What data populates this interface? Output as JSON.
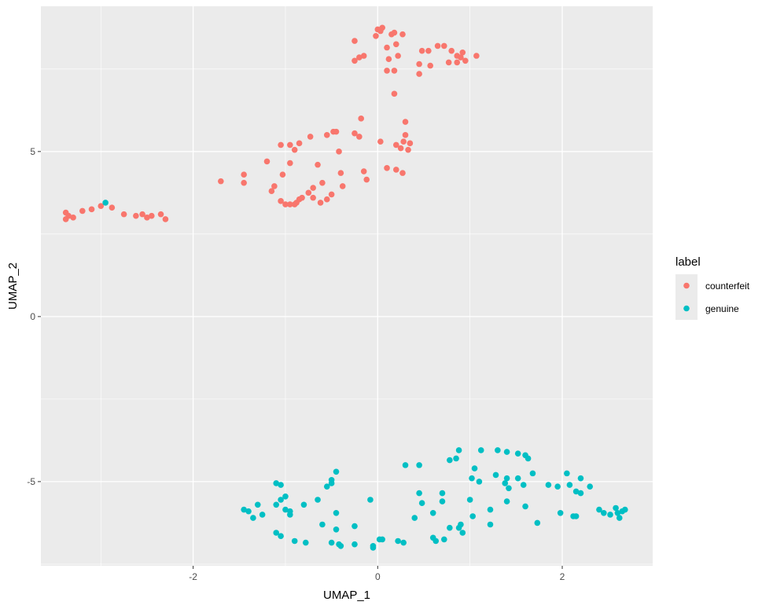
{
  "chart_data": {
    "type": "scatter",
    "title": "",
    "xlabel": "UMAP_1",
    "ylabel": "UMAP_2",
    "xlim": [
      -3.65,
      2.98
    ],
    "ylim": [
      -7.55,
      9.4
    ],
    "x_ticks": [
      -2,
      0,
      2
    ],
    "x_tick_labels": [
      "-2",
      "0",
      "2"
    ],
    "y_ticks": [
      -5,
      0,
      5
    ],
    "y_tick_labels": [
      "-5",
      "0",
      "5"
    ],
    "grid": true,
    "background_color": "#ebebeb",
    "grid_color": "#ffffff",
    "legend": {
      "title": "label",
      "position": "right",
      "entries": [
        {
          "name": "counterfeit",
          "color": "#f8766d"
        },
        {
          "name": "genuine",
          "color": "#00bfc4"
        }
      ]
    },
    "series": [
      {
        "name": "counterfeit",
        "color": "#f8766d",
        "points": [
          [
            -0.25,
            8.35
          ],
          [
            -0.25,
            7.75
          ],
          [
            -0.2,
            7.85
          ],
          [
            -0.15,
            7.9
          ],
          [
            -0.02,
            8.5
          ],
          [
            0,
            8.7
          ],
          [
            0.03,
            8.65
          ],
          [
            0.05,
            8.75
          ],
          [
            0.1,
            8.15
          ],
          [
            0.12,
            7.8
          ],
          [
            0.15,
            8.55
          ],
          [
            0.18,
            8.6
          ],
          [
            0.2,
            8.25
          ],
          [
            0.22,
            7.9
          ],
          [
            0.27,
            8.55
          ],
          [
            0.1,
            7.45
          ],
          [
            0.18,
            7.45
          ],
          [
            0.45,
            7.65
          ],
          [
            0.45,
            7.35
          ],
          [
            0.48,
            8.05
          ],
          [
            0.55,
            8.05
          ],
          [
            0.57,
            7.6
          ],
          [
            0.65,
            8.2
          ],
          [
            0.72,
            8.2
          ],
          [
            0.77,
            7.7
          ],
          [
            0.8,
            8.05
          ],
          [
            0.86,
            7.7
          ],
          [
            0.86,
            7.9
          ],
          [
            0.9,
            7.85
          ],
          [
            0.92,
            8
          ],
          [
            0.95,
            7.75
          ],
          [
            1.07,
            7.9
          ],
          [
            0.18,
            6.75
          ],
          [
            -0.18,
            6
          ],
          [
            0.3,
            5.9
          ],
          [
            -0.25,
            5.55
          ],
          [
            -0.2,
            5.45
          ],
          [
            -0.48,
            5.6
          ],
          [
            -0.45,
            5.6
          ],
          [
            -0.55,
            5.5
          ],
          [
            -0.73,
            5.45
          ],
          [
            -0.85,
            5.25
          ],
          [
            -0.95,
            5.2
          ],
          [
            -1.05,
            5.2
          ],
          [
            0.03,
            5.3
          ],
          [
            0.2,
            5.2
          ],
          [
            0.25,
            5.1
          ],
          [
            0.3,
            5.5
          ],
          [
            0.28,
            5.3
          ],
          [
            0.33,
            5.05
          ],
          [
            0.35,
            5.25
          ],
          [
            -0.9,
            5.05
          ],
          [
            -1.2,
            4.7
          ],
          [
            -0.65,
            4.6
          ],
          [
            -0.42,
            5
          ],
          [
            -0.95,
            4.65
          ],
          [
            -0.4,
            4.35
          ],
          [
            0.1,
            4.5
          ],
          [
            -0.15,
            4.4
          ],
          [
            0.2,
            4.45
          ],
          [
            0.27,
            4.35
          ],
          [
            -0.12,
            4.15
          ],
          [
            -1.45,
            4.3
          ],
          [
            -1.03,
            4.3
          ],
          [
            -1.7,
            4.1
          ],
          [
            -1.45,
            4.05
          ],
          [
            -0.6,
            4.05
          ],
          [
            -0.38,
            3.95
          ],
          [
            -0.5,
            3.7
          ],
          [
            -1.12,
            3.95
          ],
          [
            -1.15,
            3.8
          ],
          [
            -0.7,
            3.9
          ],
          [
            -0.75,
            3.75
          ],
          [
            -0.95,
            3.4
          ],
          [
            -0.85,
            3.55
          ],
          [
            -0.82,
            3.6
          ],
          [
            -1.05,
            3.5
          ],
          [
            -0.7,
            3.6
          ],
          [
            -0.55,
            3.55
          ],
          [
            -1.0,
            3.4
          ],
          [
            -0.9,
            3.4
          ],
          [
            -0.88,
            3.45
          ],
          [
            -0.62,
            3.45
          ],
          [
            -3.38,
            3.15
          ],
          [
            -3.35,
            3.05
          ],
          [
            -3.3,
            3.0
          ],
          [
            -3.38,
            2.95
          ],
          [
            -3.2,
            3.2
          ],
          [
            -3.1,
            3.25
          ],
          [
            -3.0,
            3.35
          ],
          [
            -2.88,
            3.3
          ],
          [
            -2.75,
            3.1
          ],
          [
            -2.62,
            3.05
          ],
          [
            -2.55,
            3.1
          ],
          [
            -2.5,
            3.0
          ],
          [
            -2.45,
            3.05
          ],
          [
            -2.35,
            3.1
          ],
          [
            -2.3,
            2.95
          ]
        ]
      },
      {
        "name": "genuine",
        "color": "#00bfc4",
        "points": [
          [
            -2.95,
            3.45
          ],
          [
            -1.1,
            -5.05
          ],
          [
            -1.05,
            -5.1
          ],
          [
            -1.0,
            -5.45
          ],
          [
            -1.05,
            -5.55
          ],
          [
            -1.1,
            -5.7
          ],
          [
            -1.3,
            -5.7
          ],
          [
            -1.45,
            -5.85
          ],
          [
            -1.4,
            -5.9
          ],
          [
            -1.25,
            -6.0
          ],
          [
            -1.35,
            -6.1
          ],
          [
            -0.95,
            -5.9
          ],
          [
            -0.95,
            -6.0
          ],
          [
            -1.0,
            -5.85
          ],
          [
            -1.1,
            -6.55
          ],
          [
            -1.05,
            -6.65
          ],
          [
            -0.9,
            -6.8
          ],
          [
            -0.78,
            -6.85
          ],
          [
            -0.8,
            -5.7
          ],
          [
            -0.65,
            -5.55
          ],
          [
            -0.55,
            -5.15
          ],
          [
            -0.5,
            -4.95
          ],
          [
            -0.45,
            -4.7
          ],
          [
            -0.5,
            -5.05
          ],
          [
            -0.45,
            -5.95
          ],
          [
            -0.6,
            -6.3
          ],
          [
            -0.45,
            -6.45
          ],
          [
            -0.5,
            -6.85
          ],
          [
            -0.42,
            -6.9
          ],
          [
            -0.4,
            -6.95
          ],
          [
            -0.25,
            -6.9
          ],
          [
            -0.25,
            -6.35
          ],
          [
            -0.08,
            -5.55
          ],
          [
            -0.05,
            -6.95
          ],
          [
            -0.05,
            -7.0
          ],
          [
            0.02,
            -6.75
          ],
          [
            0.05,
            -6.75
          ],
          [
            0.22,
            -6.8
          ],
          [
            0.28,
            -6.85
          ],
          [
            0.3,
            -4.5
          ],
          [
            0.4,
            -6.1
          ],
          [
            0.45,
            -5.35
          ],
          [
            0.48,
            -5.65
          ],
          [
            0.45,
            -4.5
          ],
          [
            0.6,
            -5.95
          ],
          [
            0.6,
            -6.7
          ],
          [
            0.63,
            -6.8
          ],
          [
            0.7,
            -5.6
          ],
          [
            0.7,
            -5.35
          ],
          [
            0.72,
            -6.75
          ],
          [
            0.78,
            -6.4
          ],
          [
            0.78,
            -4.35
          ],
          [
            0.85,
            -4.3
          ],
          [
            0.88,
            -4.05
          ],
          [
            0.88,
            -6.4
          ],
          [
            0.9,
            -6.3
          ],
          [
            0.92,
            -6.55
          ],
          [
            1.0,
            -5.55
          ],
          [
            1.02,
            -4.9
          ],
          [
            1.03,
            -6.05
          ],
          [
            1.05,
            -4.6
          ],
          [
            1.1,
            -5.0
          ],
          [
            1.12,
            -4.05
          ],
          [
            1.22,
            -6.3
          ],
          [
            1.22,
            -5.85
          ],
          [
            1.28,
            -4.8
          ],
          [
            1.3,
            -4.05
          ],
          [
            1.38,
            -5.05
          ],
          [
            1.4,
            -4.9
          ],
          [
            1.4,
            -4.1
          ],
          [
            1.42,
            -5.2
          ],
          [
            1.4,
            -5.6
          ],
          [
            1.52,
            -4.15
          ],
          [
            1.52,
            -4.9
          ],
          [
            1.58,
            -5.1
          ],
          [
            1.6,
            -4.2
          ],
          [
            1.63,
            -4.3
          ],
          [
            1.6,
            -5.75
          ],
          [
            1.68,
            -4.75
          ],
          [
            1.73,
            -6.25
          ],
          [
            1.85,
            -5.1
          ],
          [
            1.95,
            -5.15
          ],
          [
            1.98,
            -5.95
          ],
          [
            2.05,
            -4.75
          ],
          [
            2.08,
            -5.1
          ],
          [
            2.12,
            -6.05
          ],
          [
            2.15,
            -5.3
          ],
          [
            2.15,
            -6.05
          ],
          [
            2.2,
            -5.35
          ],
          [
            2.2,
            -4.9
          ],
          [
            2.3,
            -5.15
          ],
          [
            2.4,
            -5.85
          ],
          [
            2.45,
            -5.95
          ],
          [
            2.52,
            -6.0
          ],
          [
            2.58,
            -5.8
          ],
          [
            2.62,
            -6.1
          ],
          [
            2.6,
            -5.95
          ],
          [
            2.65,
            -5.9
          ],
          [
            2.68,
            -5.85
          ]
        ]
      }
    ]
  }
}
